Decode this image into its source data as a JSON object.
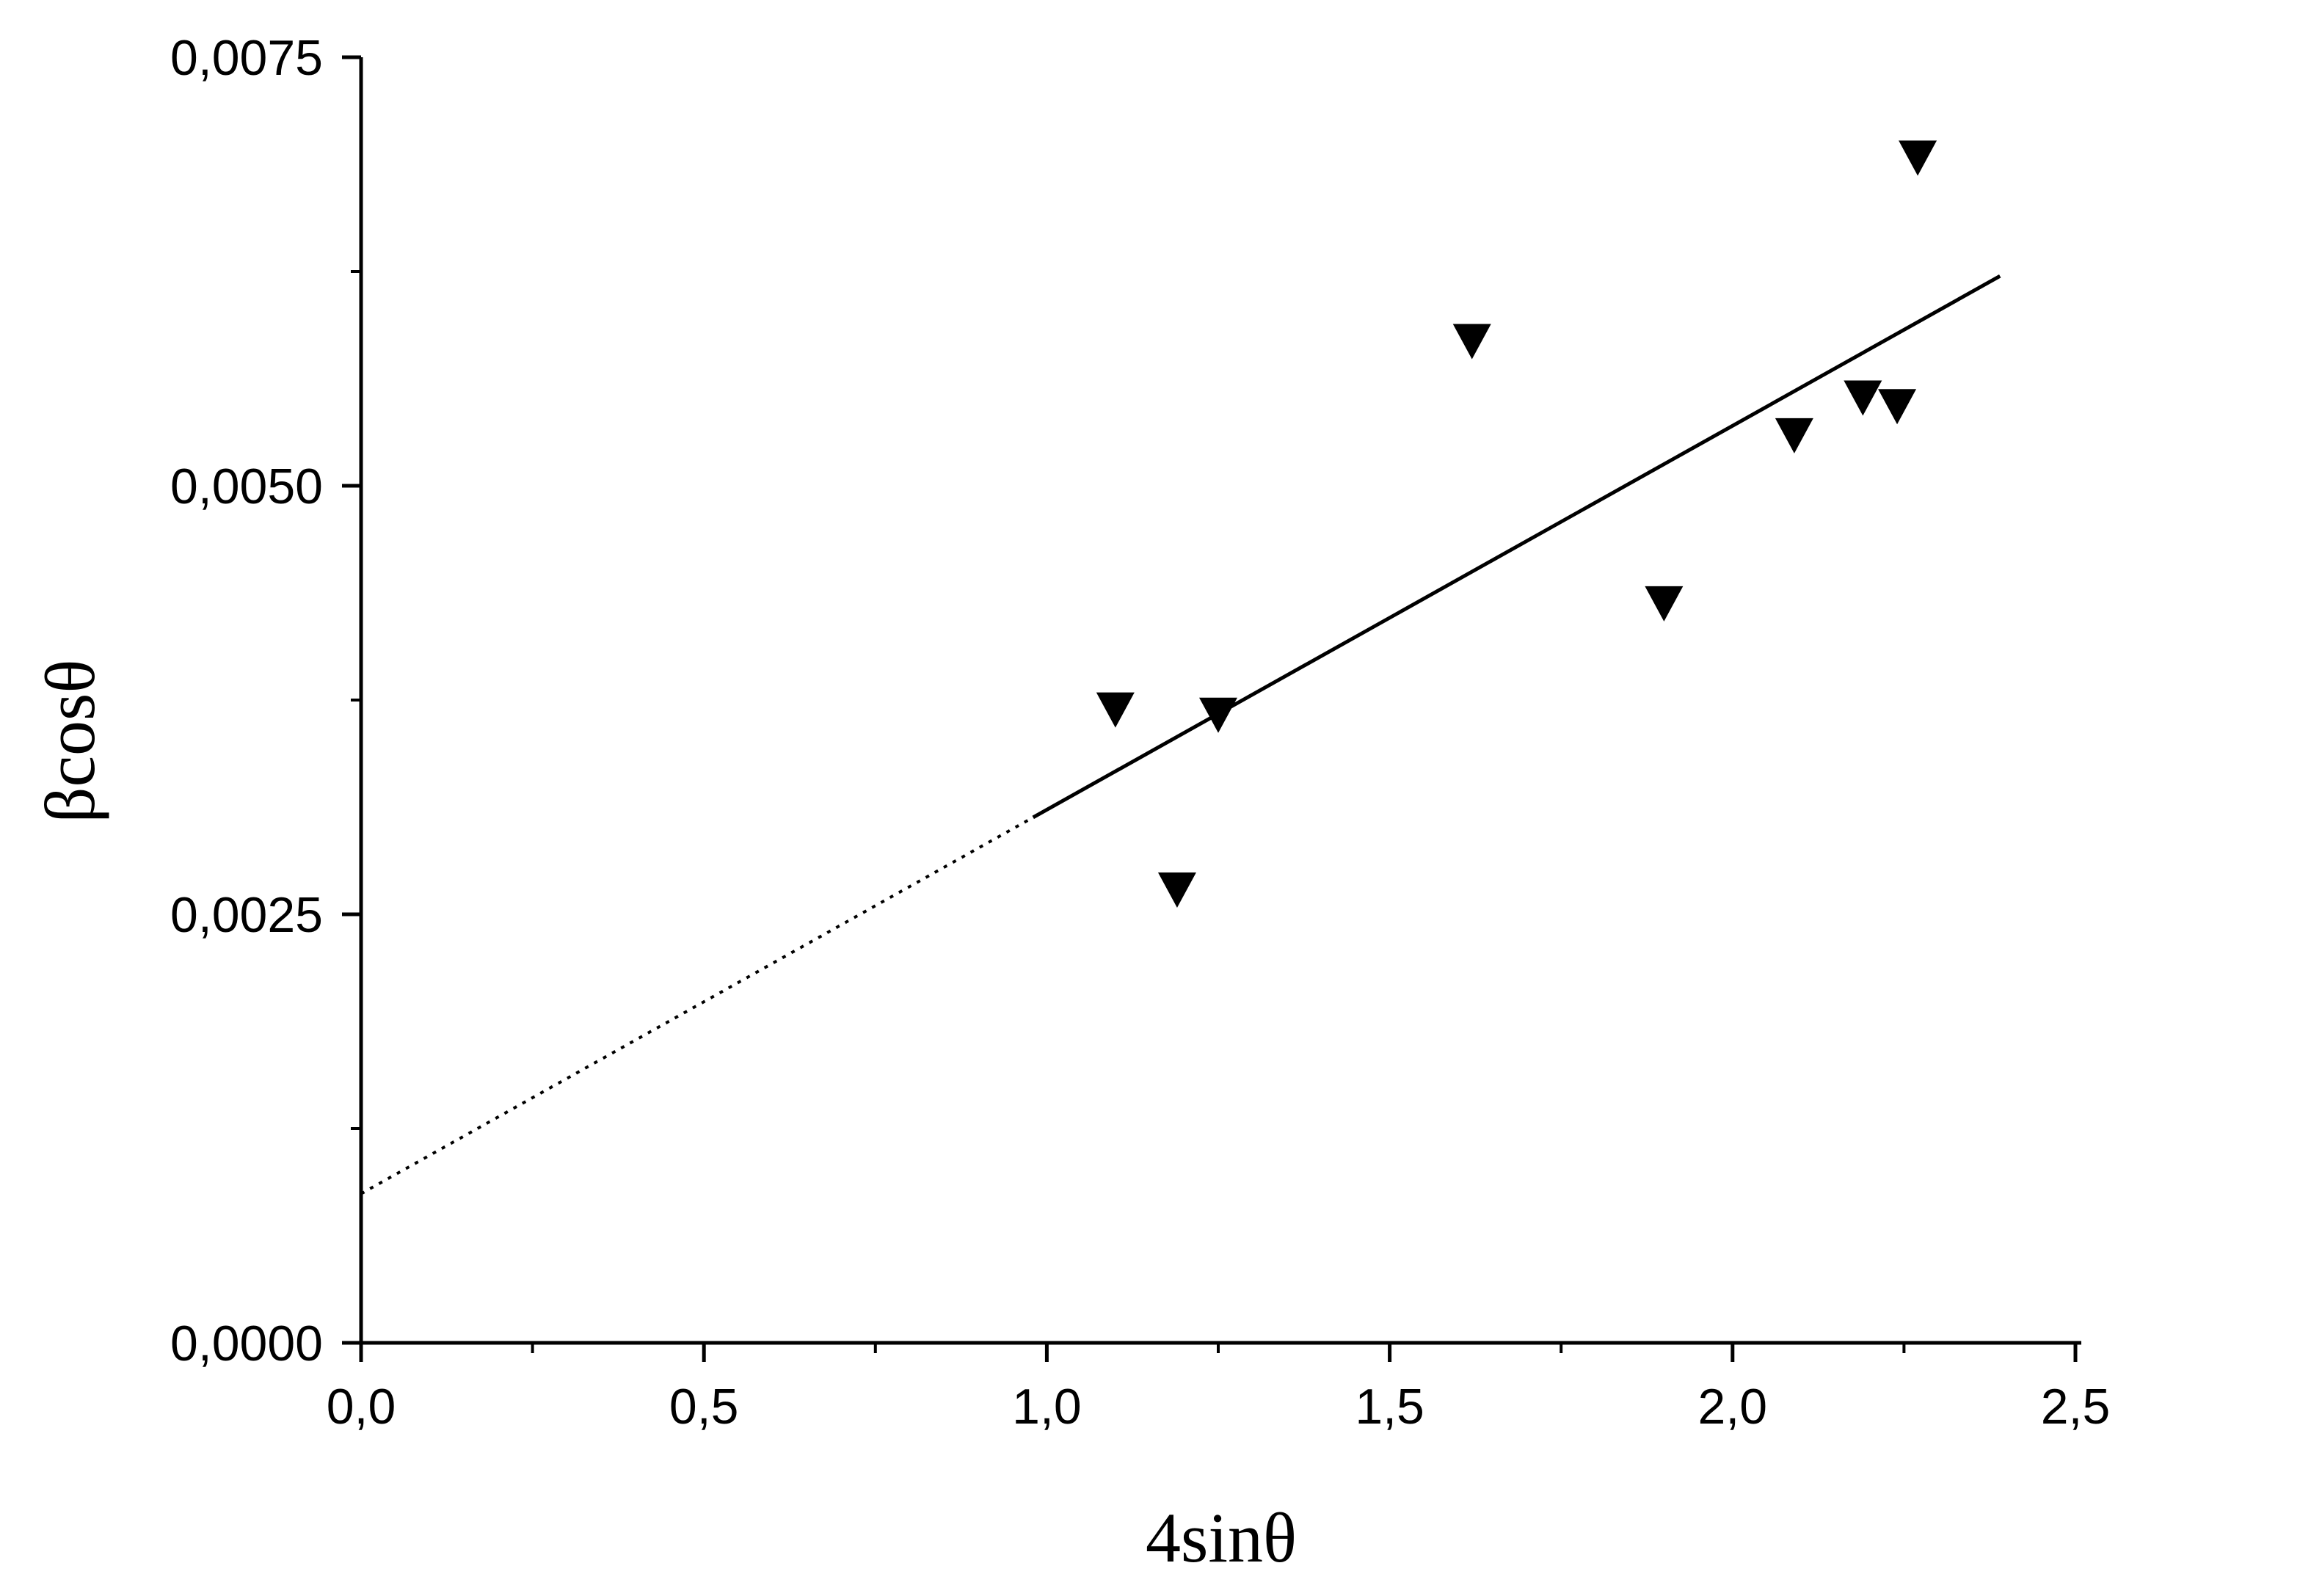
{
  "chart_data": {
    "type": "scatter",
    "xlabel": "4sinθ",
    "ylabel": "βcosθ",
    "xlim": [
      0.0,
      2.5
    ],
    "ylim": [
      0.0,
      0.0075
    ],
    "x_ticks": [
      {
        "value": 0.0,
        "label": "0,0"
      },
      {
        "value": 0.5,
        "label": "0,5"
      },
      {
        "value": 1.0,
        "label": "1,0"
      },
      {
        "value": 1.5,
        "label": "1,5"
      },
      {
        "value": 2.0,
        "label": "2,0"
      },
      {
        "value": 2.5,
        "label": "2,5"
      }
    ],
    "x_minor_ticks": [
      0.25,
      0.75,
      1.25,
      1.75,
      2.25
    ],
    "y_ticks": [
      {
        "value": 0.0,
        "label": "0,0000"
      },
      {
        "value": 0.0025,
        "label": "0,0025"
      },
      {
        "value": 0.005,
        "label": "0,0050"
      },
      {
        "value": 0.0075,
        "label": "0,0075"
      }
    ],
    "y_minor_ticks": [
      0.00125,
      0.00375,
      0.00625
    ],
    "grid": false,
    "legend": "none",
    "series": [
      {
        "marker": "triangle-down",
        "color": "#000000",
        "x": [
          1.1,
          1.19,
          1.25,
          1.62,
          1.9,
          2.09,
          2.19,
          2.24,
          2.27
        ],
        "y": [
          0.0037,
          0.00265,
          0.00367,
          0.00585,
          0.00432,
          0.0053,
          0.00552,
          0.00547,
          0.00692
        ]
      }
    ],
    "fit_line": {
      "slope": 0.00224,
      "intercept": 0.00087,
      "solid_range": [
        0.98,
        2.39
      ],
      "dotted_range": [
        0.0,
        1.04
      ],
      "color": "#000000"
    }
  }
}
